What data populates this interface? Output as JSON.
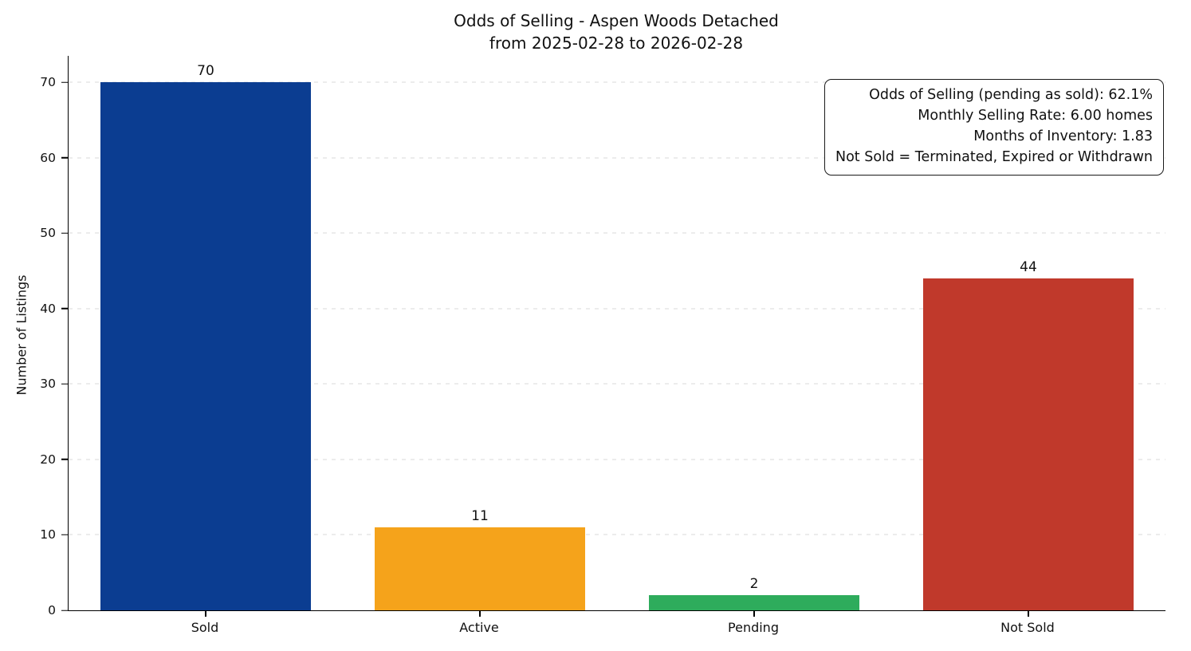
{
  "chart_data": {
    "type": "bar",
    "title": "Odds of Selling - Aspen Woods Detached from 2025-02-28 to 2026-02-28",
    "title_lines": [
      "Odds of Selling - Aspen Woods Detached",
      "from 2025-02-28 to 2026-02-28"
    ],
    "categories": [
      "Sold",
      "Active",
      "Pending",
      "Not Sold"
    ],
    "values": [
      70,
      11,
      2,
      44
    ],
    "colors": [
      "#0b3d91",
      "#f5a31b",
      "#2eac5c",
      "#c0392b"
    ],
    "xlabel": "",
    "ylabel": "Number of Listings",
    "ylim": [
      0,
      73.5
    ],
    "yticks": [
      0,
      10,
      20,
      30,
      40,
      50,
      60,
      70
    ],
    "grid": "horizontal dashed, light gray, behind bars",
    "legend": "none",
    "annotations": [
      "Odds of Selling (pending as sold): 62.1%",
      "Monthly Selling Rate: 6.00 homes",
      "Months of Inventory: 1.83",
      "Not Sold = Terminated, Expired or Withdrawn"
    ],
    "annotation_position": "top-right, bordered rounded box, right-aligned text"
  }
}
